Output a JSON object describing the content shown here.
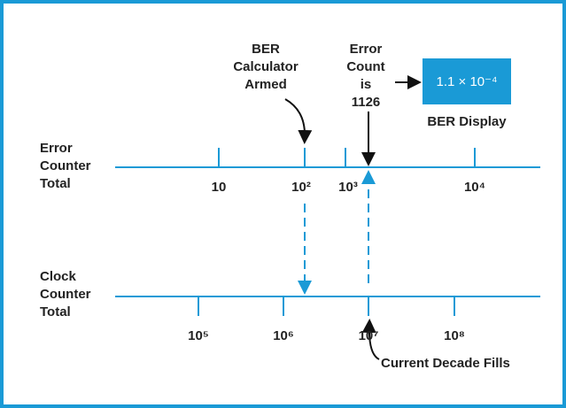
{
  "error_counter": {
    "label": [
      "Error",
      "Counter",
      "Total"
    ],
    "ticks": [
      "10",
      "10²",
      "10³",
      "10⁴"
    ]
  },
  "clock_counter": {
    "label": [
      "Clock",
      "Counter",
      "Total"
    ],
    "ticks": [
      "10⁵",
      "10⁶",
      "10⁷",
      "10⁸"
    ]
  },
  "annotations": {
    "armed": [
      "BER",
      "Calculator",
      "Armed"
    ],
    "error_count": [
      "Error",
      "Count",
      "is",
      "1126"
    ],
    "display_value": "1.1 × 10⁻⁴",
    "display_label": "BER Display",
    "decade": "Current Decade Fills"
  }
}
